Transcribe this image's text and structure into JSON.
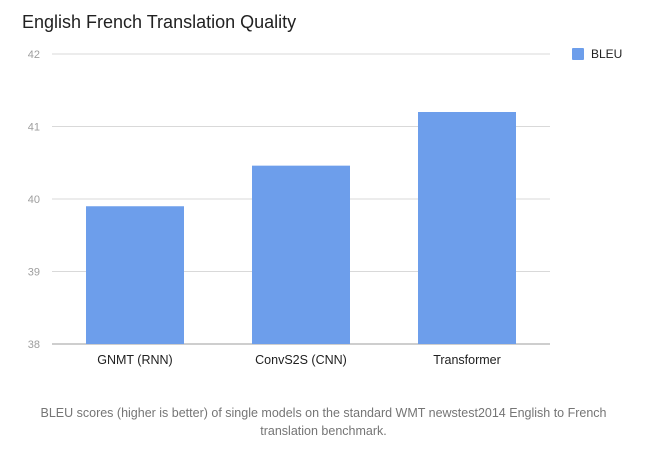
{
  "chart_data": {
    "type": "bar",
    "title": "English French Translation Quality",
    "categories": [
      "GNMT (RNN)",
      "ConvS2S (CNN)",
      "Transformer"
    ],
    "series": [
      {
        "name": "BLEU",
        "values": [
          39.9,
          40.46,
          41.2
        ]
      }
    ],
    "ylim": [
      38,
      42
    ],
    "yticks": [
      38,
      39,
      40,
      41,
      42
    ],
    "xlabel": "",
    "ylabel": "",
    "grid": true,
    "legend": "top-right",
    "bar_color": "#6d9eeb"
  },
  "caption": "BLEU scores (higher is better) of single models on the standard WMT newstest2014 English to French translation benchmark."
}
